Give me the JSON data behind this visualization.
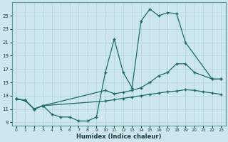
{
  "xlabel": "Humidex (Indice chaleur)",
  "xlim": [
    -0.5,
    23.5
  ],
  "ylim": [
    8.5,
    27
  ],
  "yticks": [
    9,
    11,
    13,
    15,
    17,
    19,
    21,
    23,
    25
  ],
  "xticks": [
    0,
    1,
    2,
    3,
    4,
    5,
    6,
    7,
    8,
    9,
    10,
    11,
    12,
    13,
    14,
    15,
    16,
    17,
    18,
    19,
    20,
    21,
    22,
    23
  ],
  "bg_color": "#cce8ed",
  "grid_color": "#b8d5da",
  "line_color": "#1a6b62",
  "line1_x": [
    0,
    1,
    2,
    3,
    4,
    5,
    6,
    7,
    8,
    9,
    10,
    11,
    12,
    13,
    14,
    15,
    16,
    17,
    18,
    19,
    22,
    23
  ],
  "line1_y": [
    12.5,
    12.3,
    11.0,
    11.5,
    10.2,
    9.8,
    9.8,
    9.2,
    9.2,
    9.8,
    16.5,
    21.5,
    16.5,
    14.2,
    24.2,
    26.0,
    25.0,
    25.5,
    25.3,
    21.0,
    15.5,
    15.5
  ],
  "line2_x": [
    0,
    1,
    2,
    3,
    10,
    11,
    12,
    13,
    14,
    15,
    16,
    17,
    18,
    19,
    20,
    22,
    23
  ],
  "line2_y": [
    12.5,
    12.3,
    11.0,
    11.5,
    13.8,
    13.3,
    13.5,
    13.8,
    14.2,
    15.0,
    16.0,
    16.5,
    17.8,
    17.8,
    16.5,
    15.5,
    15.5
  ],
  "line3_x": [
    0,
    1,
    2,
    3,
    10,
    11,
    12,
    13,
    14,
    15,
    16,
    17,
    18,
    19,
    20,
    21,
    22,
    23
  ],
  "line3_y": [
    12.5,
    12.3,
    11.0,
    11.5,
    12.2,
    12.4,
    12.6,
    12.8,
    13.0,
    13.2,
    13.4,
    13.6,
    13.7,
    13.9,
    13.8,
    13.6,
    13.4,
    13.2
  ]
}
